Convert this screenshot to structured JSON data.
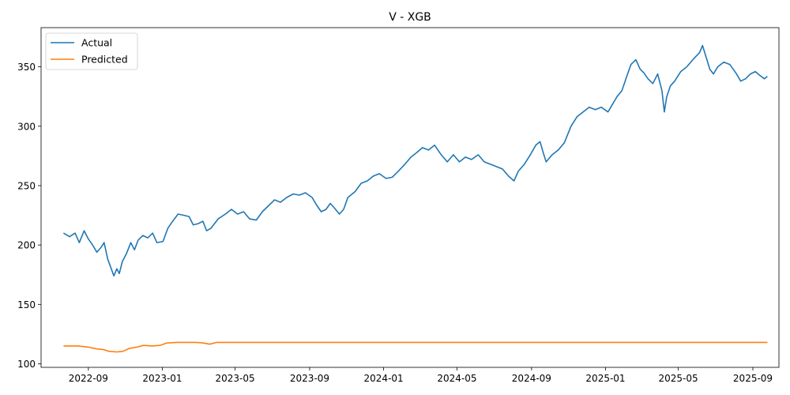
{
  "chart_data": {
    "type": "line",
    "title": "V - XGB",
    "xlabel": "",
    "ylabel": "",
    "ylim": [
      97,
      383
    ],
    "xlim": [
      "2022-06-15",
      "2025-10-14"
    ],
    "x_ticks": [
      "2022-09",
      "2023-01",
      "2023-05",
      "2023-09",
      "2024-01",
      "2024-05",
      "2024-09",
      "2025-01",
      "2025-05",
      "2025-09"
    ],
    "y_ticks": [
      100,
      150,
      200,
      250,
      300,
      350
    ],
    "legend_position": "top-left",
    "grid": false,
    "series": [
      {
        "name": "Actual",
        "color": "#1f77b4",
        "points": [
          [
            "2022-07-22",
            210
          ],
          [
            "2022-08-01",
            207
          ],
          [
            "2022-08-10",
            210
          ],
          [
            "2022-08-17",
            202
          ],
          [
            "2022-08-25",
            212
          ],
          [
            "2022-09-01",
            205
          ],
          [
            "2022-09-08",
            200
          ],
          [
            "2022-09-15",
            194
          ],
          [
            "2022-09-22",
            198
          ],
          [
            "2022-09-27",
            202
          ],
          [
            "2022-10-03",
            188
          ],
          [
            "2022-10-08",
            181
          ],
          [
            "2022-10-13",
            174
          ],
          [
            "2022-10-18",
            180
          ],
          [
            "2022-10-22",
            176
          ],
          [
            "2022-10-27",
            186
          ],
          [
            "2022-11-03",
            193
          ],
          [
            "2022-11-10",
            202
          ],
          [
            "2022-11-16",
            196
          ],
          [
            "2022-11-22",
            204
          ],
          [
            "2022-11-30",
            208
          ],
          [
            "2022-12-08",
            206
          ],
          [
            "2022-12-16",
            210
          ],
          [
            "2022-12-23",
            202
          ],
          [
            "2023-01-02",
            203
          ],
          [
            "2023-01-10",
            214
          ],
          [
            "2023-01-18",
            220
          ],
          [
            "2023-01-27",
            226
          ],
          [
            "2023-02-06",
            225
          ],
          [
            "2023-02-14",
            224
          ],
          [
            "2023-02-21",
            217
          ],
          [
            "2023-03-01",
            218
          ],
          [
            "2023-03-09",
            220
          ],
          [
            "2023-03-15",
            212
          ],
          [
            "2023-03-22",
            214
          ],
          [
            "2023-04-03",
            222
          ],
          [
            "2023-04-15",
            226
          ],
          [
            "2023-04-25",
            230
          ],
          [
            "2023-05-05",
            226
          ],
          [
            "2023-05-15",
            228
          ],
          [
            "2023-05-25",
            222
          ],
          [
            "2023-06-05",
            221
          ],
          [
            "2023-06-15",
            228
          ],
          [
            "2023-06-25",
            233
          ],
          [
            "2023-07-05",
            238
          ],
          [
            "2023-07-15",
            236
          ],
          [
            "2023-07-25",
            240
          ],
          [
            "2023-08-05",
            243
          ],
          [
            "2023-08-15",
            242
          ],
          [
            "2023-08-25",
            244
          ],
          [
            "2023-09-05",
            240
          ],
          [
            "2023-09-12",
            234
          ],
          [
            "2023-09-20",
            228
          ],
          [
            "2023-09-28",
            230
          ],
          [
            "2023-10-05",
            235
          ],
          [
            "2023-10-12",
            231
          ],
          [
            "2023-10-20",
            226
          ],
          [
            "2023-10-27",
            230
          ],
          [
            "2023-11-03",
            240
          ],
          [
            "2023-11-15",
            245
          ],
          [
            "2023-11-25",
            252
          ],
          [
            "2023-12-05",
            254
          ],
          [
            "2023-12-15",
            258
          ],
          [
            "2023-12-25",
            260
          ],
          [
            "2024-01-05",
            256
          ],
          [
            "2024-01-15",
            257
          ],
          [
            "2024-01-25",
            262
          ],
          [
            "2024-02-05",
            268
          ],
          [
            "2024-02-15",
            274
          ],
          [
            "2024-02-25",
            278
          ],
          [
            "2024-03-05",
            282
          ],
          [
            "2024-03-15",
            280
          ],
          [
            "2024-03-25",
            284
          ],
          [
            "2024-04-05",
            276
          ],
          [
            "2024-04-15",
            270
          ],
          [
            "2024-04-25",
            276
          ],
          [
            "2024-05-05",
            270
          ],
          [
            "2024-05-15",
            274
          ],
          [
            "2024-05-25",
            272
          ],
          [
            "2024-06-05",
            276
          ],
          [
            "2024-06-15",
            270
          ],
          [
            "2024-06-25",
            268
          ],
          [
            "2024-07-05",
            266
          ],
          [
            "2024-07-15",
            264
          ],
          [
            "2024-07-25",
            258
          ],
          [
            "2024-08-03",
            254
          ],
          [
            "2024-08-10",
            262
          ],
          [
            "2024-08-20",
            268
          ],
          [
            "2024-08-30",
            276
          ],
          [
            "2024-09-08",
            284
          ],
          [
            "2024-09-15",
            287
          ],
          [
            "2024-09-20",
            278
          ],
          [
            "2024-09-25",
            270
          ],
          [
            "2024-10-05",
            276
          ],
          [
            "2024-10-15",
            280
          ],
          [
            "2024-10-25",
            286
          ],
          [
            "2024-11-05",
            300
          ],
          [
            "2024-11-15",
            308
          ],
          [
            "2024-11-25",
            312
          ],
          [
            "2024-12-05",
            316
          ],
          [
            "2024-12-15",
            314
          ],
          [
            "2024-12-25",
            316
          ],
          [
            "2025-01-05",
            312
          ],
          [
            "2025-01-12",
            318
          ],
          [
            "2025-01-20",
            325
          ],
          [
            "2025-01-28",
            330
          ],
          [
            "2025-02-05",
            342
          ],
          [
            "2025-02-12",
            352
          ],
          [
            "2025-02-20",
            356
          ],
          [
            "2025-02-27",
            348
          ],
          [
            "2025-03-05",
            345
          ],
          [
            "2025-03-12",
            340
          ],
          [
            "2025-03-20",
            336
          ],
          [
            "2025-03-28",
            344
          ],
          [
            "2025-04-04",
            330
          ],
          [
            "2025-04-08",
            312
          ],
          [
            "2025-04-12",
            325
          ],
          [
            "2025-04-18",
            334
          ],
          [
            "2025-04-25",
            338
          ],
          [
            "2025-05-05",
            346
          ],
          [
            "2025-05-15",
            350
          ],
          [
            "2025-05-25",
            356
          ],
          [
            "2025-06-05",
            362
          ],
          [
            "2025-06-10",
            368
          ],
          [
            "2025-06-16",
            358
          ],
          [
            "2025-06-22",
            348
          ],
          [
            "2025-06-28",
            344
          ],
          [
            "2025-07-05",
            350
          ],
          [
            "2025-07-15",
            354
          ],
          [
            "2025-07-25",
            352
          ],
          [
            "2025-08-05",
            344
          ],
          [
            "2025-08-12",
            338
          ],
          [
            "2025-08-20",
            340
          ],
          [
            "2025-08-28",
            344
          ],
          [
            "2025-09-05",
            346
          ],
          [
            "2025-09-12",
            343
          ],
          [
            "2025-09-20",
            340
          ],
          [
            "2025-09-25",
            342
          ]
        ]
      },
      {
        "name": "Predicted",
        "color": "#ff7f0e",
        "points": [
          [
            "2022-07-22",
            115
          ],
          [
            "2022-08-15",
            115
          ],
          [
            "2022-09-01",
            114
          ],
          [
            "2022-09-15",
            112.5
          ],
          [
            "2022-09-25",
            112
          ],
          [
            "2022-10-05",
            110.5
          ],
          [
            "2022-10-18",
            110
          ],
          [
            "2022-10-28",
            110.5
          ],
          [
            "2022-11-08",
            113
          ],
          [
            "2022-11-20",
            114
          ],
          [
            "2022-12-01",
            115.5
          ],
          [
            "2022-12-15",
            115
          ],
          [
            "2022-12-28",
            115.5
          ],
          [
            "2023-01-08",
            117.5
          ],
          [
            "2023-01-25",
            118
          ],
          [
            "2023-02-25",
            118
          ],
          [
            "2023-03-10",
            117.5
          ],
          [
            "2023-03-20",
            116.5
          ],
          [
            "2023-04-01",
            118
          ],
          [
            "2025-09-25",
            118
          ]
        ]
      }
    ]
  }
}
